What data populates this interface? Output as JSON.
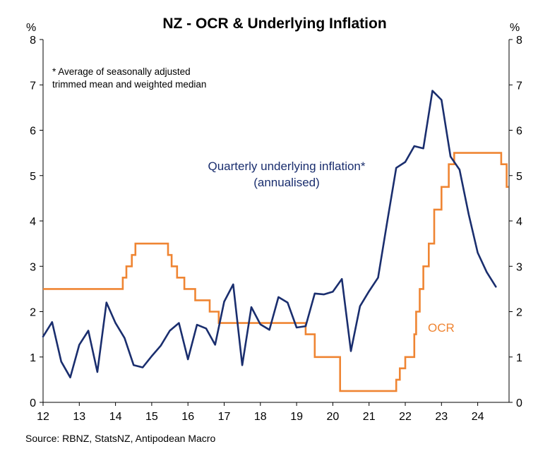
{
  "chart_data": {
    "type": "line",
    "title": "NZ - OCR & Underlying Inflation",
    "ylabel_left": "%",
    "ylabel_right": "%",
    "ylim": [
      0,
      8
    ],
    "xlim": [
      12,
      24.85
    ],
    "x_ticks": [
      "12",
      "13",
      "14",
      "15",
      "16",
      "17",
      "18",
      "19",
      "20",
      "21",
      "22",
      "23",
      "24"
    ],
    "y_ticks": [
      "0",
      "1",
      "2",
      "3",
      "4",
      "5",
      "6",
      "7",
      "8"
    ],
    "note": [
      "* Average of seasonally adjusted",
      "trimmed mean and weighted median"
    ],
    "source": "Source: RBNZ, StatsNZ, Antipodean Macro",
    "colors": {
      "inflation": "#1a2e6e",
      "ocr": "#ef8533"
    },
    "series": [
      {
        "label_lines": [
          "Quarterly underlying inflation*",
          "(annualised)"
        ],
        "color": "#1a2e6e",
        "x": [
          12.0,
          12.25,
          12.5,
          12.75,
          13.0,
          13.25,
          13.5,
          13.75,
          14.0,
          14.25,
          14.5,
          14.75,
          15.0,
          15.25,
          15.5,
          15.75,
          16.0,
          16.25,
          16.5,
          16.75,
          17.0,
          17.25,
          17.5,
          17.75,
          18.0,
          18.25,
          18.5,
          18.75,
          19.0,
          19.25,
          19.5,
          19.75,
          20.0,
          20.25,
          20.5,
          20.75,
          21.0,
          21.25,
          21.5,
          21.75,
          22.0,
          22.25,
          22.5,
          22.75,
          23.0,
          23.25,
          23.5,
          23.75,
          24.0,
          24.25,
          24.5
        ],
        "values": [
          1.45,
          1.77,
          0.9,
          0.55,
          1.27,
          1.58,
          0.67,
          2.2,
          1.75,
          1.42,
          0.82,
          0.77,
          1.02,
          1.25,
          1.58,
          1.75,
          0.95,
          1.71,
          1.63,
          1.27,
          2.22,
          2.6,
          0.82,
          2.1,
          1.72,
          1.6,
          2.32,
          2.2,
          1.65,
          1.68,
          2.4,
          2.38,
          2.44,
          2.72,
          1.13,
          2.12,
          2.45,
          2.75,
          3.97,
          5.17,
          5.3,
          5.65,
          5.6,
          6.87,
          6.67,
          5.42,
          5.13,
          4.15,
          3.3,
          2.87,
          2.55
        ]
      },
      {
        "label": "OCR",
        "color": "#ef8533",
        "step": true,
        "x": [
          12.0,
          14.2,
          14.3,
          14.45,
          14.55,
          15.45,
          15.55,
          15.7,
          15.9,
          16.2,
          16.6,
          16.85,
          19.25,
          19.5,
          20.2,
          21.75,
          21.85,
          22.0,
          22.25,
          22.3,
          22.4,
          22.5,
          22.65,
          22.8,
          23.0,
          23.2,
          23.35,
          23.5,
          24.65,
          24.8,
          24.85
        ],
        "values": [
          2.5,
          2.75,
          3.0,
          3.25,
          3.5,
          3.25,
          3.0,
          2.75,
          2.5,
          2.25,
          2.0,
          1.75,
          1.5,
          1.0,
          0.25,
          0.5,
          0.75,
          1.0,
          1.5,
          2.0,
          2.5,
          3.0,
          3.5,
          4.25,
          4.75,
          5.25,
          5.5,
          5.5,
          5.25,
          4.75,
          4.75
        ]
      }
    ]
  }
}
